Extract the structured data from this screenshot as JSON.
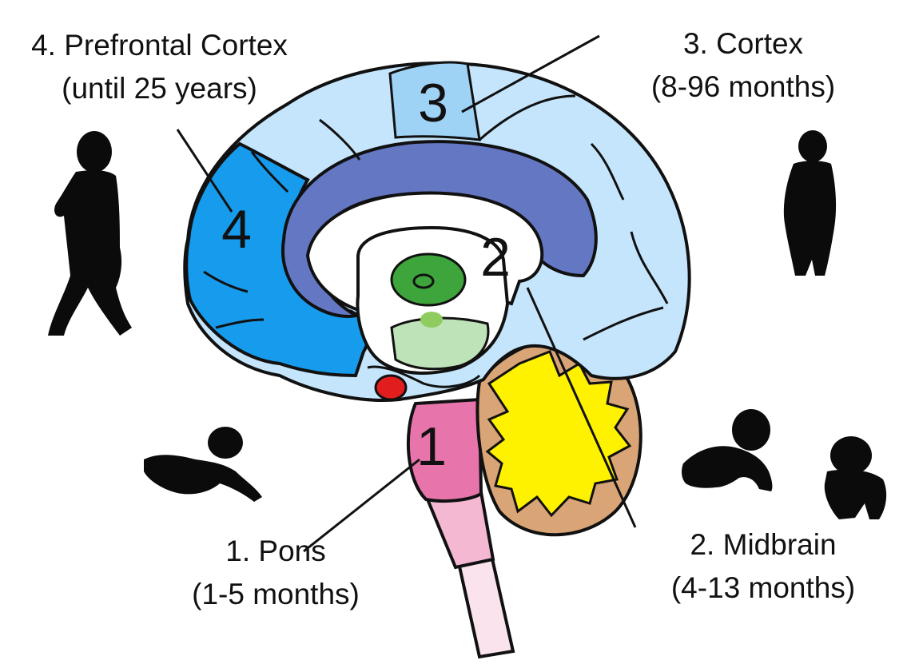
{
  "regions": [
    {
      "number": "1",
      "name": "1. Pons",
      "age": "(1-5 months)",
      "color": "#e775ab"
    },
    {
      "number": "2",
      "name": "2. Midbrain",
      "age": "(4-13 months)",
      "color": "#ffffff"
    },
    {
      "number": "3",
      "name": "3. Cortex",
      "age": "(8-96 months)",
      "color": "#9fd3f6"
    },
    {
      "number": "4",
      "name": "4. Prefrontal Cortex",
      "age": "(until 25 years)",
      "color": "#179bec"
    }
  ],
  "colors": {
    "outer_cortex": "#c4e5fb",
    "parietal_cortex": "#9fd3f6",
    "prefrontal_cortex": "#179bec",
    "cingulate_gyrus": "#6477c3",
    "thalamus_green": "#3ea53c",
    "hypothalamus_green": "#bfe3b8",
    "amygdala_red": "#e21d1d",
    "pons_pink": "#e775ab",
    "medulla_pink": "#f4b8d3",
    "spinal_pink": "#fbe3ee",
    "cerebellum_brown": "#d9a576",
    "arbor_vitae_yellow": "#fff200",
    "silhouette": "#0b0b0b"
  },
  "icons": [
    "walking-child-silhouette-icon",
    "standing-toddler-silhouette-icon",
    "crawling-baby-silhouette-icon",
    "lying-baby-silhouette-icon",
    "sitting-baby-silhouette-icon"
  ]
}
